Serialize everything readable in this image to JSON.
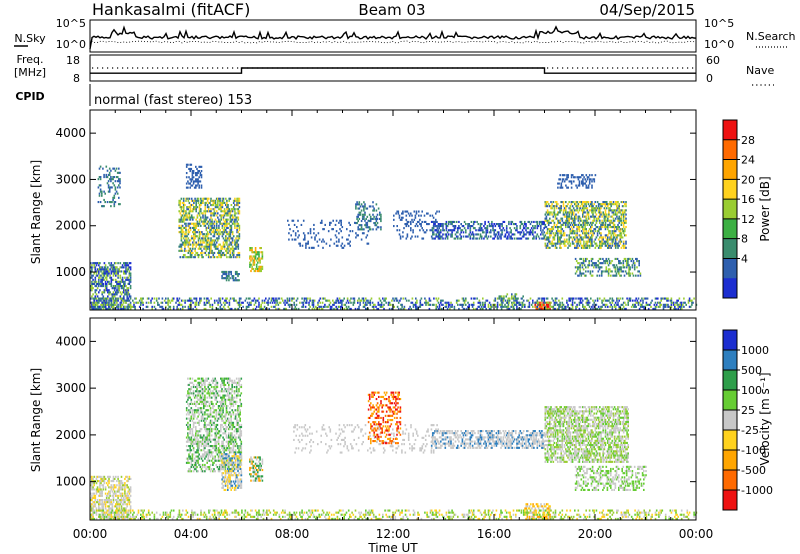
{
  "header": {
    "station": "Hankasalmi (fitACF)",
    "beam": "Beam 03",
    "date": "04/Sep/2015"
  },
  "chart_data": [
    {
      "type": "line",
      "panel": "nsky-nsearch",
      "left_label": "N.Sky",
      "right_label": "N.Search",
      "left_ticks": [
        "10^5",
        "10^0"
      ],
      "right_ticks": [
        "10^5",
        "10^0"
      ]
    },
    {
      "type": "line",
      "panel": "freq-nave",
      "left_label_line1": "Freq.",
      "left_label_line2": "[MHz]",
      "right_label": "Nave",
      "left_ticks": [
        "18",
        "8"
      ],
      "right_ticks": [
        "60",
        "0"
      ],
      "freq_mhz": [
        {
          "x": 0.0,
          "y": 11.0
        },
        {
          "x": 6.0,
          "y": 11.0
        },
        {
          "x": 6.0,
          "y": 13.0
        },
        {
          "x": 18.0,
          "y": 13.0
        },
        {
          "x": 18.0,
          "y": 11.0
        },
        {
          "x": 24.0,
          "y": 11.0
        }
      ]
    },
    {
      "type": "text",
      "panel": "cpid",
      "label": "CPID",
      "value": "normal (fast stereo) 153"
    },
    {
      "type": "heatmap",
      "panel": "power",
      "ylabel": "Slant Range [km]",
      "ylim": [
        180,
        4500
      ],
      "yticks": [
        1000,
        2000,
        3000,
        4000
      ],
      "xlim": [
        0,
        24
      ],
      "colorbar_label": "Power [dB]",
      "colorbar_ticks": [
        "28",
        "24",
        "20",
        "16",
        "12",
        "8",
        "4"
      ],
      "colorbar_colors": [
        "#ee1111",
        "#ff6a00",
        "#ffa500",
        "#ffd21e",
        "#9acd32",
        "#3cb043",
        "#3a8c6e",
        "#2e5fae",
        "#1c2ed0"
      ]
    },
    {
      "type": "heatmap",
      "panel": "velocity",
      "ylabel": "Slant Range [km]",
      "xlabel": "Time UT",
      "ylim": [
        180,
        4500
      ],
      "yticks": [
        1000,
        2000,
        3000,
        4000
      ],
      "xlim": [
        0,
        24
      ],
      "xticks": [
        "00:00",
        "04:00",
        "08:00",
        "12:00",
        "16:00",
        "20:00",
        "00:00"
      ],
      "colorbar_label": "Velocity [m s⁻¹]",
      "colorbar_ticks": [
        "1000",
        "500",
        "100",
        "25",
        "-25",
        "-100",
        "-500",
        "-1000"
      ],
      "colorbar_colors": [
        "#1c2ed0",
        "#2e7fbf",
        "#2e9e4a",
        "#66cc33",
        "#c8c8c8",
        "#ffd21e",
        "#ffa500",
        "#ff6a00",
        "#ee1111"
      ]
    }
  ]
}
